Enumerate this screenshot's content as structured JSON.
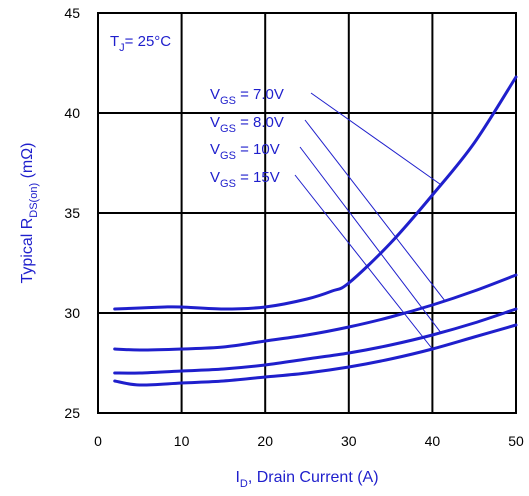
{
  "chart_data": {
    "type": "line",
    "xlabel": {
      "main": "I",
      "sub": "D",
      "rest": ", Drain Current (A)"
    },
    "ylabel": {
      "main": "Typical R",
      "sub": "DS(on)",
      "rest": " (mΩ)"
    },
    "xlim": [
      0,
      50
    ],
    "ylim": [
      25,
      45
    ],
    "x_ticks": [
      "0",
      "10",
      "20",
      "30",
      "40",
      "50"
    ],
    "y_ticks": [
      "25",
      "30",
      "35",
      "40",
      "45"
    ],
    "grid": true,
    "condition": {
      "main": "T",
      "sub": "J",
      "rest": "= 25°C"
    },
    "series": [
      {
        "label": {
          "main": "V",
          "sub": "GS",
          "rest": " = 7.0V"
        },
        "x": [
          2,
          5,
          8,
          10,
          15,
          20,
          25,
          28,
          30,
          35,
          40,
          45,
          50
        ],
        "y": [
          30.2,
          30.25,
          30.3,
          30.3,
          30.2,
          30.3,
          30.7,
          31.1,
          31.5,
          33.5,
          35.9,
          38.5,
          41.8
        ]
      },
      {
        "label": {
          "main": "V",
          "sub": "GS",
          "rest": " = 8.0V"
        },
        "x": [
          2,
          5,
          10,
          15,
          20,
          25,
          30,
          35,
          40,
          45,
          50
        ],
        "y": [
          28.2,
          28.15,
          28.2,
          28.3,
          28.6,
          28.9,
          29.3,
          29.8,
          30.4,
          31.1,
          31.9
        ]
      },
      {
        "label": {
          "main": "V",
          "sub": "GS",
          "rest": " = 10V"
        },
        "x": [
          2,
          5,
          10,
          15,
          20,
          25,
          30,
          35,
          40,
          45,
          50
        ],
        "y": [
          27.0,
          27.0,
          27.1,
          27.2,
          27.4,
          27.7,
          28.0,
          28.4,
          28.9,
          29.5,
          30.2
        ]
      },
      {
        "label": {
          "main": "V",
          "sub": "GS",
          "rest": " = 15V"
        },
        "x": [
          2,
          5,
          10,
          15,
          20,
          25,
          30,
          35,
          40,
          45,
          50
        ],
        "y": [
          26.6,
          26.4,
          26.5,
          26.6,
          26.8,
          27.0,
          27.3,
          27.7,
          28.2,
          28.8,
          29.4
        ]
      }
    ],
    "colors": {
      "curve": "#1f1fcc",
      "grid": "#000000",
      "text": "#000000",
      "annotation": "#1f1fcc"
    }
  }
}
